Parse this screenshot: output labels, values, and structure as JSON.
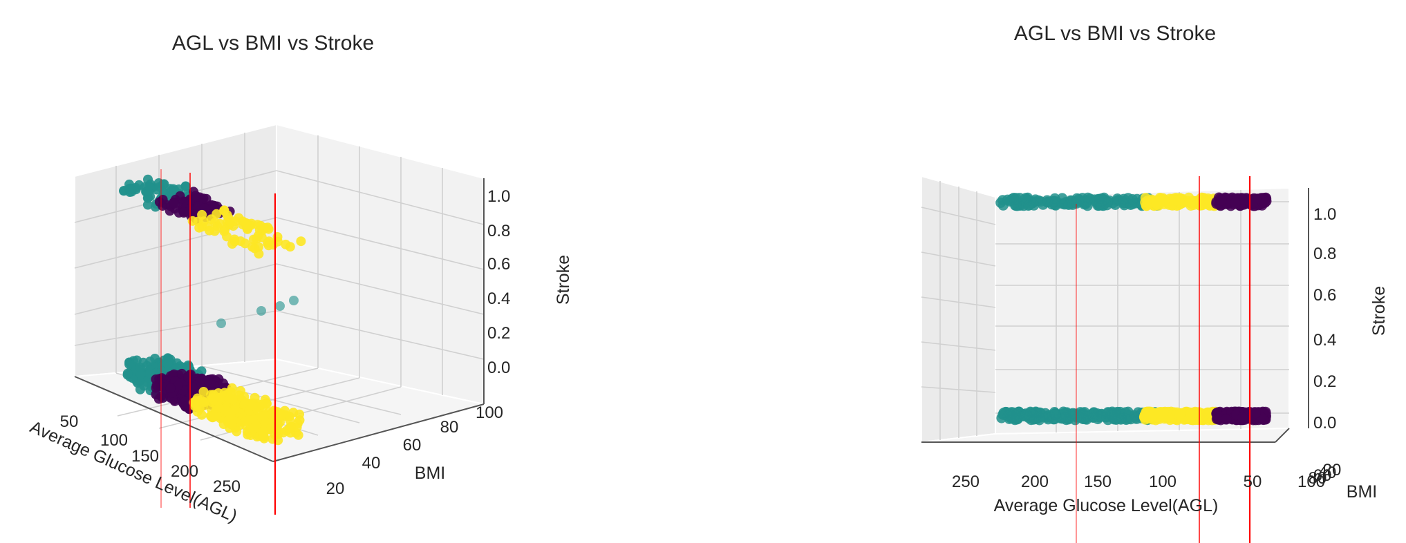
{
  "colors": {
    "teal": "#21918c",
    "purple": "#440154",
    "yellow": "#fde725",
    "red": "#ff0000"
  },
  "chart_data": [
    {
      "type": "scatter",
      "title": "AGL vs BMI vs Stroke",
      "xlabel": "Average Glucose Level(AGL)",
      "ylabel": "BMI",
      "zlabel": "Stroke",
      "xticks": [
        "50",
        "100",
        "150",
        "200",
        "250"
      ],
      "yticks": [
        "20",
        "40",
        "60",
        "80",
        "100"
      ],
      "zticks": [
        "0.0",
        "0.2",
        "0.4",
        "0.6",
        "0.8",
        "1.0"
      ],
      "xlim": [
        50,
        280
      ],
      "ylim": [
        10,
        100
      ],
      "zlim": [
        0,
        1
      ],
      "series": [
        {
          "color": "teal",
          "x_range": [
            55,
            115
          ],
          "z_values": [
            0,
            1
          ]
        },
        {
          "color": "purple",
          "x_range": [
            100,
            160
          ],
          "z_values": [
            0,
            1
          ]
        },
        {
          "color": "yellow",
          "x_range": [
            160,
            272
          ],
          "z_values": [
            0,
            1
          ]
        }
      ]
    },
    {
      "type": "scatter",
      "title": "AGL vs BMI vs Stroke",
      "xlabel": "Average Glucose Level(AGL)",
      "ylabel": "BMI",
      "zlabel": "Stroke",
      "xticks": [
        "250",
        "200",
        "150",
        "100",
        "50"
      ],
      "yticks": [
        "100",
        "80",
        "60",
        "40",
        "20"
      ],
      "zticks": [
        "0.0",
        "0.2",
        "0.4",
        "0.6",
        "0.8",
        "1.0"
      ],
      "xlim": [
        280,
        30
      ],
      "zlim": [
        0,
        1
      ],
      "series": [
        {
          "color": "teal",
          "x_range": [
            115,
            225
          ],
          "z_values": [
            0,
            1
          ]
        },
        {
          "color": "yellow",
          "x_range": [
            75,
            125
          ],
          "z_values": [
            0,
            1
          ]
        },
        {
          "color": "purple",
          "x_range": [
            40,
            75
          ],
          "z_values": [
            0,
            1
          ]
        }
      ]
    }
  ]
}
